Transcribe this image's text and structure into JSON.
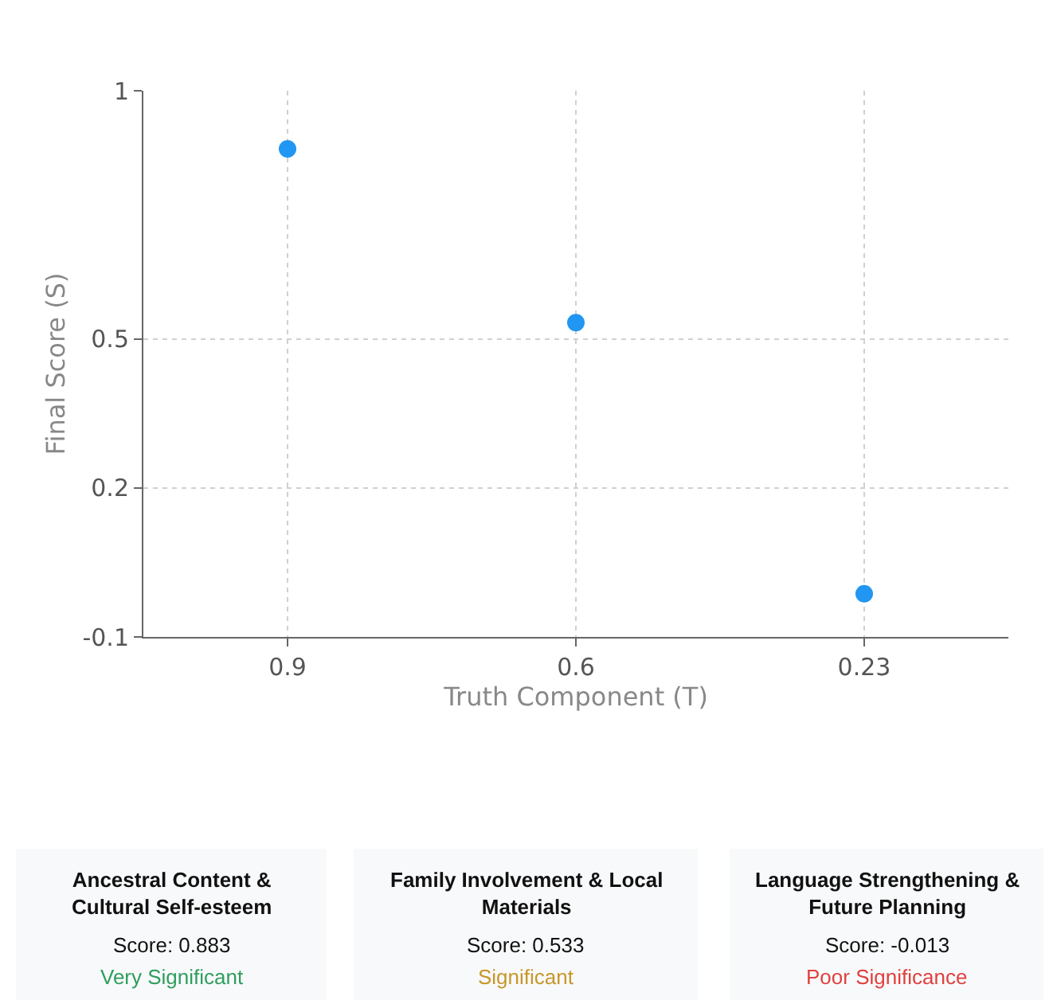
{
  "chart_data": {
    "type": "scatter",
    "xlabel": "Truth Component (T)",
    "ylabel": "Final Score (S)",
    "categories": [
      "0.9",
      "0.6",
      "0.23"
    ],
    "series": [
      {
        "color": "#2196f3",
        "values": [
          0.883,
          0.533,
          -0.013
        ]
      }
    ],
    "ylim": [
      -0.1,
      1
    ],
    "yticks": [
      -0.1,
      0.2,
      0.5,
      1
    ],
    "grid": true,
    "marker": "circle",
    "legend": false,
    "annotations": [
      "Ancestral Content & Cultural Self-esteem",
      "Score: 0.883",
      "Very Significant",
      "Family Involvement & Local Materials",
      "Score: 0.533",
      "Significant",
      "Language Strengthening & Future Planning",
      "Score: -0.013",
      "Poor Significance"
    ]
  }
}
